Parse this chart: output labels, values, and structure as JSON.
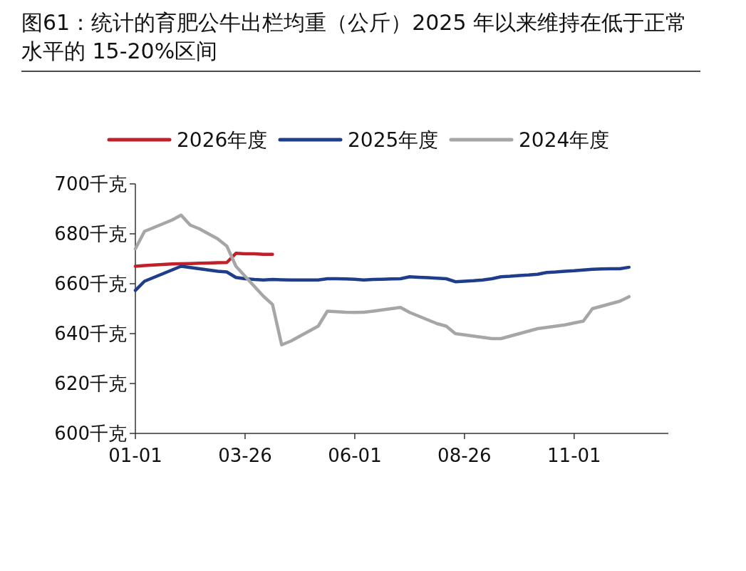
{
  "chart_data": {
    "type": "line",
    "title": "图61：统计的育肥公牛出栏均重（公斤）2025 年以来维持在低于正常水平的 15-20%区间",
    "categories": [
      "01-01",
      null,
      null,
      null,
      null,
      null,
      null,
      null,
      null,
      null,
      null,
      null,
      "03-26",
      null,
      null,
      null,
      null,
      null,
      null,
      null,
      null,
      null,
      null,
      null,
      "06-01",
      null,
      null,
      null,
      null,
      null,
      null,
      null,
      null,
      null,
      null,
      null,
      "08-26",
      null,
      null,
      null,
      null,
      null,
      null,
      null,
      null,
      null,
      null,
      null,
      "11-01",
      null,
      null,
      null,
      null,
      null,
      null,
      null,
      null,
      null
    ],
    "ylim": [
      600,
      700
    ],
    "yticks": [
      {
        "value": 600,
        "label": "600千克"
      },
      {
        "value": 620,
        "label": "620千克"
      },
      {
        "value": 640,
        "label": "640千克"
      },
      {
        "value": 660,
        "label": "660千克"
      },
      {
        "value": 680,
        "label": "680千克"
      },
      {
        "value": 700,
        "label": "700千克"
      }
    ],
    "legend": "top",
    "grid": false,
    "line_style": "solid",
    "marker": "none",
    "series": [
      {
        "name": "2026年度",
        "color": "#c0202a",
        "values": [
          667,
          667.3,
          667.5,
          667.7,
          667.9,
          668,
          668.1,
          668.2,
          668.3,
          668.4,
          668.5,
          672.2,
          672,
          672,
          671.8,
          671.8,
          null,
          null,
          null,
          null,
          null,
          null,
          null,
          null,
          null,
          null,
          null,
          null,
          null,
          null,
          null,
          null,
          null,
          null,
          null,
          null,
          null,
          null,
          null,
          null,
          null,
          null,
          null,
          null,
          null,
          null,
          null,
          null,
          null,
          null,
          null,
          null,
          null,
          null,
          null,
          null,
          null,
          null
        ]
      },
      {
        "name": "2025年度",
        "color": "#1f3d8a",
        "values": [
          657.3,
          661,
          662.5,
          664,
          665.5,
          667,
          666.5,
          666,
          665.5,
          665,
          664.7,
          662.5,
          662,
          661.7,
          661.5,
          661.7,
          661.6,
          661.5,
          661.5,
          661.5,
          661.5,
          662,
          662,
          661.9,
          661.8,
          661.5,
          661.7,
          661.8,
          661.9,
          662,
          662.8,
          662.6,
          662.4,
          662.2,
          662,
          660.8,
          661,
          661.2,
          661.5,
          662,
          662.8,
          663,
          663.3,
          663.5,
          663.8,
          664.5,
          664.7,
          665,
          665.2,
          665.5,
          665.8,
          665.9,
          666,
          666,
          666.6,
          null,
          null,
          null
        ]
      },
      {
        "name": "2024年度",
        "color": "#a6a6a6",
        "values": [
          674,
          681,
          682.5,
          684,
          685.5,
          687.5,
          683.5,
          682,
          680,
          678,
          675.1,
          667,
          663,
          659,
          655,
          651.7,
          635.5,
          637,
          639,
          641,
          643,
          649,
          648.8,
          648.6,
          648.5,
          648.6,
          649,
          649.5,
          650,
          650.5,
          648.5,
          647,
          645.5,
          644,
          643,
          640,
          639.5,
          639,
          638.5,
          638,
          638,
          639,
          640,
          641,
          642,
          642.5,
          643,
          643.5,
          644.3,
          645,
          650,
          651,
          652,
          653,
          654.8,
          null,
          null,
          null
        ]
      }
    ]
  }
}
